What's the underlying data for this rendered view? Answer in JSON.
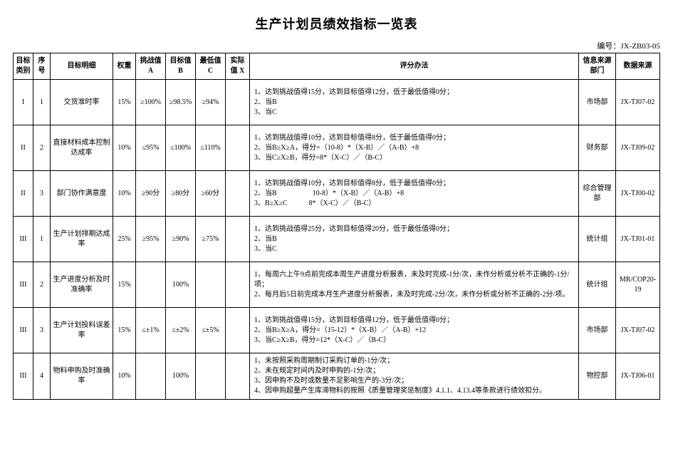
{
  "title": "生产计划员绩效指标一览表",
  "doc_id": "编号：JX-ZB03-05",
  "headers": {
    "category": "目标类别",
    "seq": "序号",
    "detail": "目标明细",
    "weight": "权重",
    "valA": "挑战值 A",
    "valB": "目标值 B",
    "valC": "最低值 C",
    "valX": "实际值 X",
    "method": "评分办法",
    "src_dept": "信息来源部门",
    "data_src": "数据来源"
  },
  "rows": [
    {
      "cat": "I",
      "seq": "1",
      "detail": "交货准时率",
      "weight": "15%",
      "a": "≥100%",
      "b": "≥98.5%",
      "c": "≥94%",
      "x": "",
      "method": "1、达到挑战值得15分，达到目标值得12分，低于最低值得0分；\n2、当B\n3、当C",
      "src_dept": "市场部",
      "data_src": "JX-TJ07-02"
    },
    {
      "cat": "II",
      "seq": "2",
      "detail": "直接材料成本控制达成率",
      "weight": "10%",
      "a": "≤95%",
      "b": "≤100%",
      "c": "≤110%",
      "x": "",
      "method": "1、达到挑战值得10分，达到目标值得8分，低于最低值得0分；\n2、当B≥X≥A，得分=（10-8）*（X-B）／（A-B）+8\n3、当C≥X≥B，得分=8*（X-C）／（B-C）",
      "src_dept": "财务部",
      "data_src": "JX-TJ09-02"
    },
    {
      "cat": "II",
      "seq": "3",
      "detail": "部门协作满意度",
      "weight": "10%",
      "a": "≥90分",
      "b": "≥80分",
      "c": "≥60分",
      "x": "",
      "method": "1、达到挑战值得10分，达到目标值得8分，低于最低值得0分；\n2、当B     10-8）*（X-B）／（A-B）+8\n3、B≥X≥C   8*（X-C）／（B-C）",
      "src_dept": "综合管理部",
      "data_src": "JX-TJ00-02"
    },
    {
      "cat": "III",
      "seq": "1",
      "detail": "生产计划排期达成率",
      "weight": "25%",
      "a": "≥95%",
      "b": "≥90%",
      "c": "≥75%",
      "x": "",
      "method": "1、达到挑战值得25分，达到目标值得20分，低于最低值得0分；\n2、当B\n3、当C",
      "src_dept": "统计组",
      "data_src": "JX-TJ01-01"
    },
    {
      "cat": "III",
      "seq": "2",
      "detail": "生产进度分析及时准确率",
      "weight": "15%",
      "a": "",
      "b": "100%",
      "c": "",
      "x": "",
      "method": "1、每周六上午9点前完成本周生产进度分析报表，未及时完成-1分/次，未作分析或分析不正确的-1分/项；\n2、每月后5日前完成本月生产进度分析报表，未及时完成-2分/次，未作分析或分析不正确的-2分/项。",
      "src_dept": "统计组",
      "data_src": "MR/COP20-19"
    },
    {
      "cat": "III",
      "seq": "3",
      "detail": "生产计划投料误差率",
      "weight": "15%",
      "a": "≤±1%",
      "b": "≤±2%",
      "c": "≤±5%",
      "x": "",
      "method": "1、达到挑战值得15分，达到目标值得12分，低于最低值得0分；\n2、当B≥X≥A，得分=（15-12）*（X-B）／（A-B）+12\n3、当C≥X≥B，得分=12*（X-C）／（B-C）",
      "src_dept": "市场部",
      "data_src": "JX-TJ07-02"
    },
    {
      "cat": "III",
      "seq": "4",
      "detail": "物料申购及时准确率",
      "weight": "10%",
      "a": "",
      "b": "100%",
      "c": "",
      "x": "",
      "method": "1、未按照采购周期制订采购订单的-1分/次；\n2、未在规定时间内及时申购的-1分/次；\n3、因申购不及时或数量不足影响生产的-3分/次；\n4、因申购超量产生库滞物料的按照《质量管理奖惩制度》4.1.1、4.13.4等条款进行绩效扣分。",
      "src_dept": "物控部",
      "data_src": "JX-TJ06-01"
    }
  ]
}
